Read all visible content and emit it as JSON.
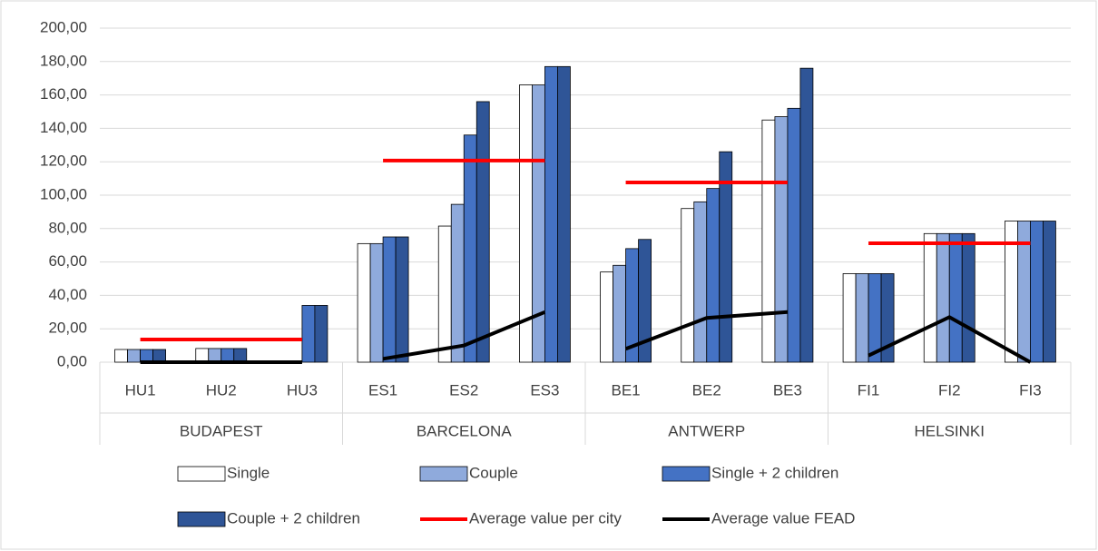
{
  "chart_data": {
    "type": "bar",
    "groups": [
      {
        "name": "BUDAPEST",
        "categories": [
          "HU1",
          "HU2",
          "HU3"
        ]
      },
      {
        "name": "BARCELONA",
        "categories": [
          "ES1",
          "ES2",
          "ES3"
        ]
      },
      {
        "name": "ANTWERP",
        "categories": [
          "BE1",
          "BE2",
          "BE3"
        ]
      },
      {
        "name": "HELSINKI",
        "categories": [
          "FI1",
          "FI2",
          "FI3"
        ]
      }
    ],
    "series": [
      {
        "name": "Single",
        "type": "bar",
        "color": "#ffffff",
        "values": [
          7.6,
          8.2,
          0,
          71,
          81.5,
          166,
          54,
          92,
          145,
          53,
          77,
          84.5
        ]
      },
      {
        "name": "Couple",
        "type": "bar",
        "color": "#8faadc",
        "values": [
          7.6,
          8.2,
          0,
          71,
          94.5,
          166,
          58,
          96,
          147,
          53,
          77,
          84.5
        ]
      },
      {
        "name": "Single + 2 children",
        "type": "bar",
        "color": "#4472c4",
        "values": [
          7.6,
          8.2,
          34,
          75,
          136,
          177,
          68,
          104,
          152,
          53,
          77,
          84.5
        ]
      },
      {
        "name": "Couple + 2 children",
        "type": "bar",
        "color": "#2f5597",
        "values": [
          7.6,
          8.2,
          34,
          75,
          156,
          177,
          73.5,
          126,
          176,
          53,
          77,
          84.5
        ]
      },
      {
        "name": "Average value per city",
        "type": "line",
        "color": "#ff0000",
        "values": [
          13.6,
          13.6,
          13.6,
          120.7,
          120.7,
          120.7,
          107.6,
          107.6,
          107.6,
          71.2,
          71.2,
          71.2
        ]
      },
      {
        "name": "Average value FEAD",
        "type": "line",
        "color": "#000000",
        "values": [
          0,
          0,
          0,
          2,
          10,
          30,
          8,
          26.5,
          30,
          4,
          27,
          0
        ]
      }
    ],
    "ylim": [
      0,
      200
    ],
    "yticks": [
      {
        "value": 0,
        "label": "0,00"
      },
      {
        "value": 20,
        "label": "20,00"
      },
      {
        "value": 40,
        "label": "40,00"
      },
      {
        "value": 60,
        "label": "60,00"
      },
      {
        "value": 80,
        "label": "80,00"
      },
      {
        "value": 100,
        "label": "100,00"
      },
      {
        "value": 120,
        "label": "120,00"
      },
      {
        "value": 140,
        "label": "140,00"
      },
      {
        "value": 160,
        "label": "160,00"
      },
      {
        "value": 180,
        "label": "180,00"
      },
      {
        "value": 200,
        "label": "200,00"
      }
    ],
    "grid": true
  }
}
